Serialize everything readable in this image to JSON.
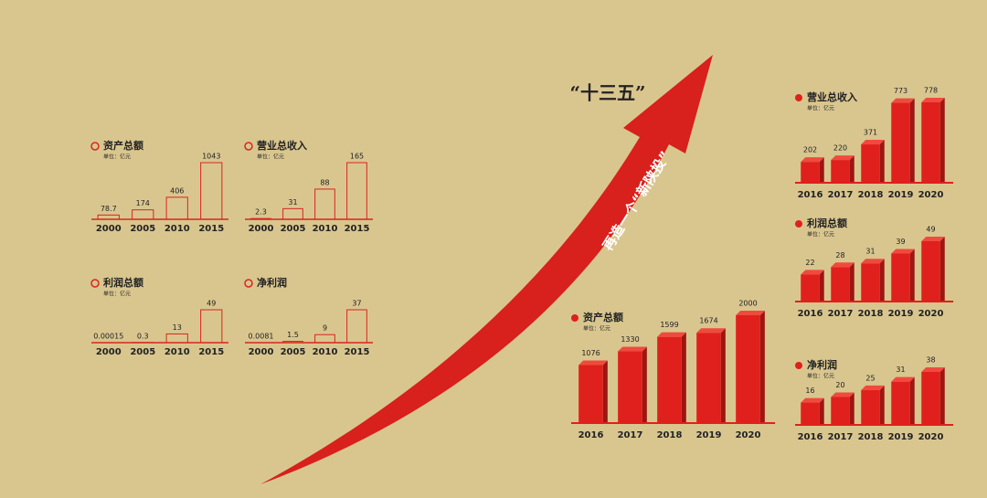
{
  "headline": "“十三五”",
  "arrow_label": "再造一个“新陕投”",
  "chart_data": [
    {
      "type": "bar",
      "style": "outline",
      "color": "#d8261f",
      "title": "资产总额",
      "unit": "单位：亿元",
      "categories": [
        "2000",
        "2005",
        "2010",
        "2015"
      ],
      "values": [
        78.7,
        174,
        406,
        1043
      ]
    },
    {
      "type": "bar",
      "style": "outline",
      "color": "#d8261f",
      "title": "营业总收入",
      "unit": "单位：亿元",
      "categories": [
        "2000",
        "2005",
        "2010",
        "2015"
      ],
      "values": [
        2.3,
        31,
        88,
        165
      ]
    },
    {
      "type": "bar",
      "style": "outline",
      "color": "#d8261f",
      "title": "利润总额",
      "unit": "单位：亿元",
      "categories": [
        "2000",
        "2005",
        "2010",
        "2015"
      ],
      "values": [
        0.00015,
        0.3,
        13,
        49
      ]
    },
    {
      "type": "bar",
      "style": "outline",
      "color": "#d8261f",
      "title": "净利润",
      "categories": [
        "2000",
        "2005",
        "2010",
        "2015"
      ],
      "values": [
        0.0081,
        1.5,
        9,
        37
      ]
    },
    {
      "type": "bar",
      "style": "solid",
      "color": "#e0201c",
      "title": "营业总收入",
      "unit": "单位：亿元",
      "categories": [
        "2016",
        "2017",
        "2018",
        "2019",
        "2020"
      ],
      "values": [
        202,
        220,
        371,
        773,
        778
      ]
    },
    {
      "type": "bar",
      "style": "solid",
      "color": "#e0201c",
      "title": "利润总额",
      "unit": "单位：亿元",
      "categories": [
        "2016",
        "2017",
        "2018",
        "2019",
        "2020"
      ],
      "values": [
        22,
        28,
        31,
        39,
        49
      ]
    },
    {
      "type": "bar",
      "style": "solid",
      "color": "#e0201c",
      "title": "净利润",
      "unit": "单位：亿元",
      "categories": [
        "2016",
        "2017",
        "2018",
        "2019",
        "2020"
      ],
      "values": [
        16,
        20,
        25,
        31,
        38
      ]
    },
    {
      "type": "bar",
      "style": "solid",
      "color": "#e0201c",
      "title": "资产总额",
      "unit": "单位：亿元",
      "categories": [
        "2016",
        "2017",
        "2018",
        "2019",
        "2020"
      ],
      "values": [
        1076,
        1330,
        1599,
        1674,
        2000
      ]
    }
  ]
}
